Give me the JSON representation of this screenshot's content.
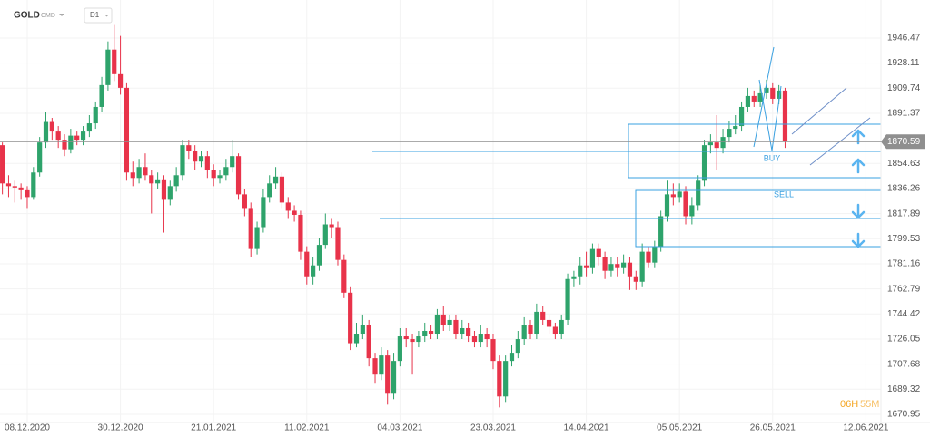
{
  "chart_data": {
    "type": "candlestick",
    "symbol": "GOLD",
    "market": "CMD",
    "timeframe": "D1",
    "categories": [
      null,
      null,
      null,
      null,
      "08.12.2020",
      null,
      null,
      null,
      null,
      null,
      null,
      null,
      null,
      null,
      null,
      null,
      null,
      null,
      null,
      "30.12.2020",
      null,
      null,
      null,
      null,
      null,
      null,
      null,
      null,
      null,
      null,
      null,
      null,
      null,
      null,
      "21.01.2021",
      null,
      null,
      null,
      null,
      null,
      null,
      null,
      null,
      null,
      null,
      null,
      null,
      null,
      null,
      "11.02.2021",
      null,
      null,
      null,
      null,
      null,
      null,
      null,
      null,
      null,
      null,
      null,
      null,
      null,
      null,
      "04.03.2021",
      null,
      null,
      null,
      null,
      null,
      null,
      null,
      null,
      null,
      null,
      null,
      null,
      null,
      null,
      "23.03.2021",
      null,
      null,
      null,
      null,
      null,
      null,
      null,
      null,
      null,
      null,
      null,
      null,
      null,
      null,
      "14.04.2021",
      null,
      null,
      null,
      null,
      null,
      null,
      null,
      null,
      null,
      null,
      null,
      null,
      null,
      null,
      "05.05.2021",
      null,
      null,
      null,
      null,
      null,
      null,
      null,
      null,
      null,
      null,
      null,
      null,
      null,
      null,
      "26.05.2021",
      null,
      null,
      null,
      null,
      null,
      null,
      null,
      null,
      null,
      null,
      null,
      null,
      null,
      null,
      "12.06.2021",
      null
    ],
    "open": [
      1868,
      1840,
      1838,
      1837,
      1835,
      1830,
      1848,
      1870,
      1885,
      1878,
      1872,
      1865,
      1875,
      1872,
      1878,
      1884,
      1896,
      1912,
      1938,
      1920,
      1910,
      1848,
      1844,
      1852,
      1846,
      1840,
      1843,
      1828,
      1838,
      1846,
      1868,
      1864,
      1856,
      1860,
      1850,
      1844,
      1846,
      1852,
      1860,
      1832,
      1822,
      1792,
      1808,
      1830,
      1840,
      1845,
      1826,
      1820,
      1817,
      1790,
      1772,
      1780,
      1795,
      1810,
      1808,
      1784,
      1760,
      1723,
      1730,
      1736,
      1712,
      1700,
      1714,
      1686,
      1710,
      1728,
      1726,
      1724,
      1728,
      1732,
      1730,
      1744,
      1736,
      1740,
      1730,
      1734,
      1728,
      1724,
      1730,
      1726,
      1710,
      1684,
      1710,
      1716,
      1726,
      1736,
      1730,
      1746,
      1740,
      1735,
      1730,
      1740,
      1770,
      1772,
      1780,
      1778,
      1792,
      1786,
      1776,
      1781,
      1778,
      1782,
      1772,
      1768,
      1790,
      1782,
      1794,
      1816,
      1832,
      1830,
      1834,
      1816,
      1824,
      1842,
      1868,
      1870,
      1866,
      1874,
      1880,
      1882,
      1896,
      1904,
      1900,
      1906,
      1910,
      1902,
      1908,
      null,
      null,
      null,
      null,
      null,
      null,
      null,
      null,
      null,
      null,
      null,
      null,
      null,
      null
    ],
    "high": [
      1870,
      1846,
      1842,
      1840,
      1838,
      1852,
      1874,
      1892,
      1888,
      1882,
      1876,
      1880,
      1878,
      1882,
      1890,
      1900,
      1918,
      1944,
      1956,
      1948,
      1914,
      1856,
      1858,
      1862,
      1850,
      1848,
      1846,
      1842,
      1852,
      1872,
      1872,
      1868,
      1864,
      1864,
      1854,
      1850,
      1858,
      1872,
      1862,
      1836,
      1826,
      1812,
      1836,
      1846,
      1852,
      1848,
      1830,
      1824,
      1820,
      1794,
      1786,
      1800,
      1818,
      1814,
      1812,
      1788,
      1764,
      1738,
      1744,
      1740,
      1716,
      1720,
      1718,
      1716,
      1734,
      1734,
      1730,
      1732,
      1738,
      1736,
      1748,
      1750,
      1744,
      1744,
      1740,
      1738,
      1732,
      1736,
      1734,
      1730,
      1714,
      1714,
      1722,
      1732,
      1742,
      1740,
      1752,
      1750,
      1744,
      1738,
      1744,
      1774,
      1776,
      1786,
      1790,
      1796,
      1796,
      1790,
      1786,
      1786,
      1788,
      1786,
      1776,
      1796,
      1794,
      1798,
      1820,
      1842,
      1840,
      1840,
      1838,
      1830,
      1846,
      1872,
      1876,
      1890,
      1880,
      1886,
      1890,
      1900,
      1910,
      1908,
      1912,
      1916,
      1914,
      1912,
      1910,
      null,
      null,
      null,
      null,
      null,
      null,
      null,
      null,
      null,
      null,
      null,
      null,
      null,
      null
    ],
    "low": [
      1832,
      1830,
      1826,
      1828,
      1822,
      1828,
      1845,
      1866,
      1872,
      1866,
      1860,
      1862,
      1868,
      1868,
      1874,
      1880,
      1892,
      1908,
      1915,
      1905,
      1842,
      1838,
      1840,
      1842,
      1818,
      1836,
      1804,
      1824,
      1834,
      1842,
      1858,
      1850,
      1852,
      1844,
      1838,
      1840,
      1842,
      1848,
      1828,
      1816,
      1786,
      1788,
      1804,
      1826,
      1836,
      1822,
      1814,
      1812,
      1784,
      1766,
      1766,
      1776,
      1792,
      1800,
      1780,
      1756,
      1718,
      1720,
      1726,
      1706,
      1694,
      1696,
      1678,
      1682,
      1706,
      1720,
      1700,
      1720,
      1724,
      1726,
      1726,
      1732,
      1732,
      1726,
      1726,
      1724,
      1720,
      1720,
      1720,
      1704,
      1676,
      1680,
      1706,
      1712,
      1722,
      1726,
      1726,
      1736,
      1730,
      1726,
      1726,
      1736,
      1764,
      1766,
      1772,
      1774,
      1780,
      1770,
      1772,
      1772,
      1774,
      1762,
      1762,
      1764,
      1778,
      1778,
      1790,
      1812,
      1824,
      1826,
      1810,
      1810,
      1820,
      1838,
      1862,
      1850,
      1862,
      1870,
      1876,
      1878,
      1892,
      1896,
      1896,
      1902,
      1898,
      1898,
      1866,
      null,
      null,
      null,
      null,
      null,
      null,
      null,
      null,
      null,
      null,
      null,
      null,
      null,
      null
    ],
    "close": [
      1840,
      1838,
      1837,
      1835,
      1830,
      1848,
      1870,
      1885,
      1878,
      1872,
      1865,
      1875,
      1872,
      1878,
      1884,
      1896,
      1912,
      1938,
      1920,
      1910,
      1848,
      1844,
      1852,
      1846,
      1840,
      1843,
      1828,
      1838,
      1846,
      1868,
      1864,
      1856,
      1860,
      1850,
      1844,
      1846,
      1852,
      1860,
      1832,
      1822,
      1792,
      1808,
      1830,
      1840,
      1845,
      1826,
      1820,
      1817,
      1790,
      1772,
      1780,
      1795,
      1810,
      1808,
      1784,
      1760,
      1723,
      1730,
      1736,
      1712,
      1700,
      1714,
      1686,
      1710,
      1728,
      1726,
      1724,
      1728,
      1732,
      1730,
      1744,
      1736,
      1740,
      1730,
      1734,
      1728,
      1724,
      1730,
      1726,
      1710,
      1684,
      1710,
      1716,
      1726,
      1736,
      1730,
      1746,
      1740,
      1735,
      1730,
      1740,
      1770,
      1772,
      1780,
      1778,
      1792,
      1786,
      1776,
      1781,
      1778,
      1782,
      1772,
      1768,
      1790,
      1782,
      1794,
      1816,
      1832,
      1830,
      1834,
      1816,
      1824,
      1842,
      1868,
      1870,
      1866,
      1874,
      1880,
      1882,
      1896,
      1904,
      1900,
      1906,
      1910,
      1902,
      1908,
      1871,
      null,
      null,
      null,
      null,
      null,
      null,
      null,
      null,
      null,
      null,
      null,
      null,
      null,
      null
    ],
    "up_color": "#2ea36b",
    "down_color": "#e8334a",
    "current_price": 1870.59,
    "current_price_color": "#8f8f8f",
    "ylim": [
      1667.6,
      1971.0
    ],
    "yticks": [
      1946.47,
      1928.11,
      1909.74,
      1891.37,
      1854.63,
      1836.26,
      1817.89,
      1799.53,
      1781.16,
      1762.79,
      1744.42,
      1726.05,
      1707.68,
      1689.32,
      1670.95
    ],
    "grid": true,
    "buy_label": "BUY",
    "sell_label": "SELL",
    "countdown_hours": "06H",
    "countdown_minutes": "55M"
  }
}
